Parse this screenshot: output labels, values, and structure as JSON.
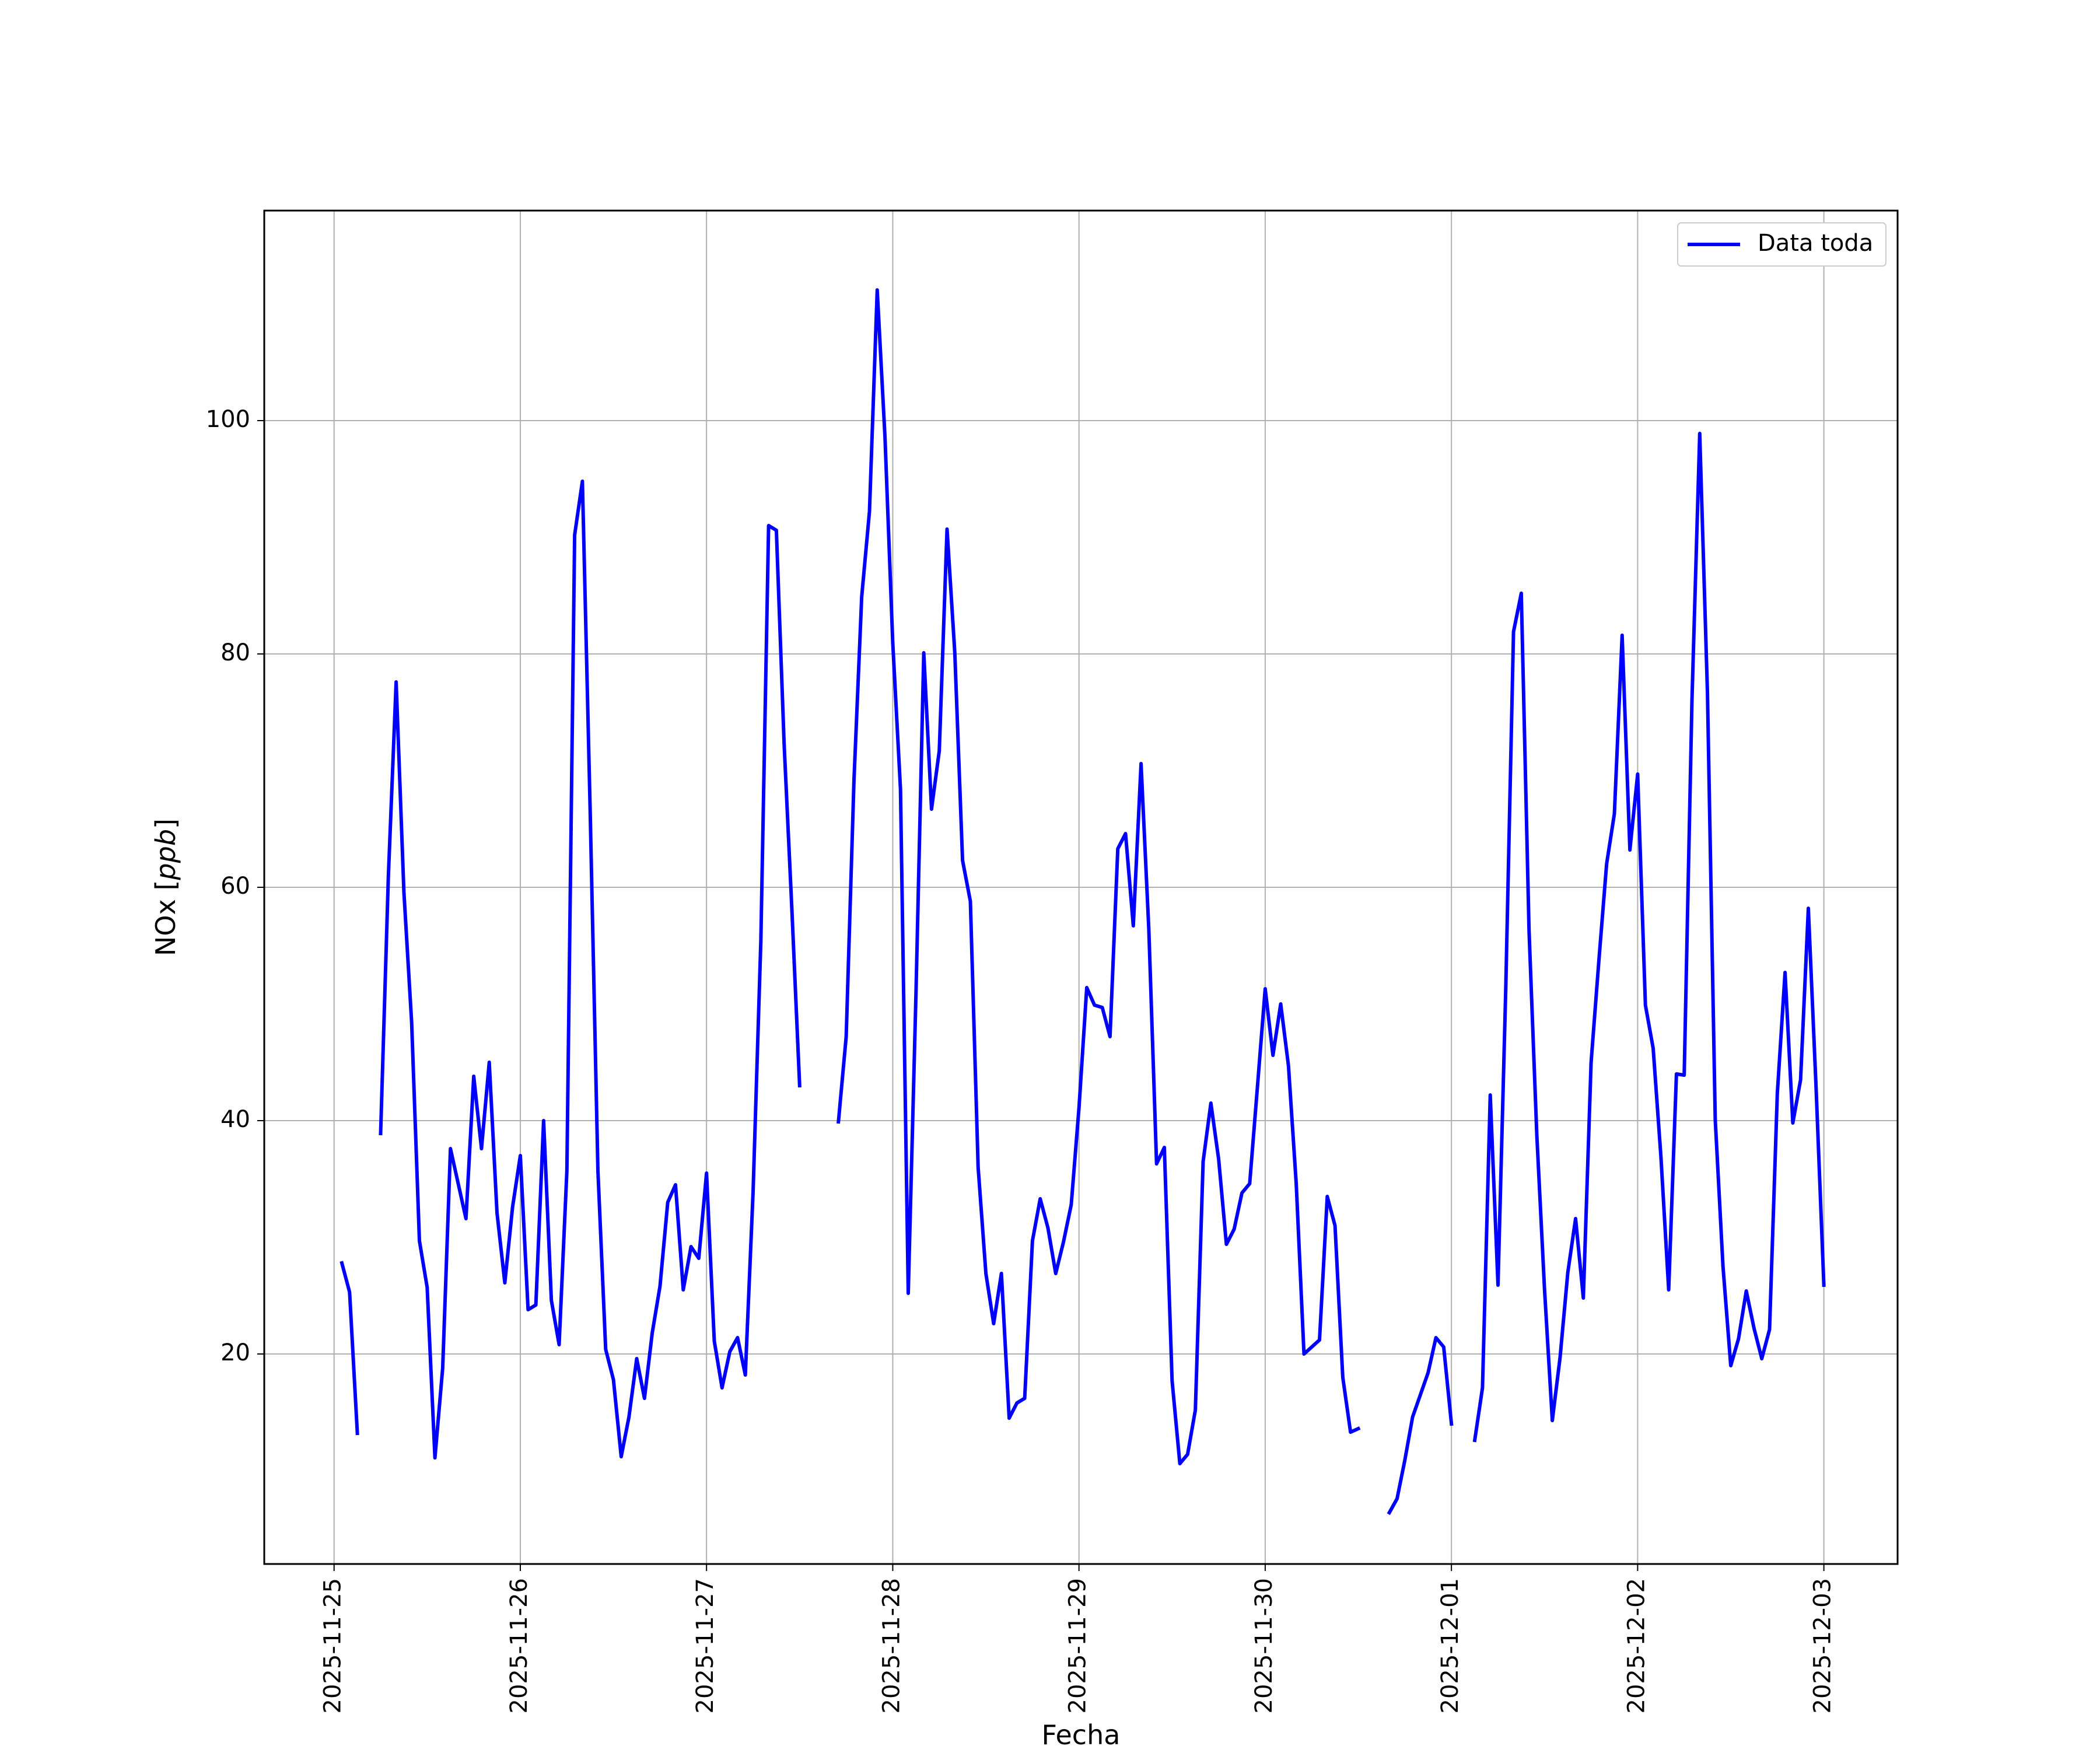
{
  "chart_data": {
    "type": "line",
    "title": "",
    "xlabel": "Fecha",
    "ylabel": "NOx [ppb]",
    "ylabel_main": "NOx ",
    "ylabel_unit": "ppb",
    "xlim": [
      "2025-11-24T15:00",
      "2025-12-03T09:30"
    ],
    "ylim": [
      2,
      118
    ],
    "grid": true,
    "legend_position": "top-right",
    "x_ticks": [
      "2025-11-25",
      "2025-11-26",
      "2025-11-27",
      "2025-11-28",
      "2025-11-29",
      "2025-11-30",
      "2025-12-01",
      "2025-12-02",
      "2025-12-03"
    ],
    "y_ticks": [
      20,
      40,
      60,
      80,
      100
    ],
    "series": [
      {
        "name": "Data toda",
        "color": "#0000ff",
        "points": [
          [
            "2025-11-25T01:00",
            27.8
          ],
          [
            "2025-11-25T02:00",
            25.3
          ],
          [
            "2025-11-25T03:00",
            13.2
          ],
          [
            "2025-11-25T04:00",
            null
          ],
          [
            "2025-11-25T06:00",
            38.9
          ],
          [
            "2025-11-25T07:00",
            61.0
          ],
          [
            "2025-11-25T08:00",
            77.6
          ],
          [
            "2025-11-25T09:00",
            59.6
          ],
          [
            "2025-11-25T10:00",
            48.4
          ],
          [
            "2025-11-25T11:00",
            29.7
          ],
          [
            "2025-11-25T12:00",
            25.7
          ],
          [
            "2025-11-25T13:00",
            11.1
          ],
          [
            "2025-11-25T14:00",
            18.8
          ],
          [
            "2025-11-25T15:00",
            37.6
          ],
          [
            "2025-11-25T16:00",
            34.6
          ],
          [
            "2025-11-25T17:00",
            31.6
          ],
          [
            "2025-11-25T18:00",
            43.8
          ],
          [
            "2025-11-25T19:00",
            37.6
          ],
          [
            "2025-11-25T20:00",
            45.0
          ],
          [
            "2025-11-25T21:00",
            32.1
          ],
          [
            "2025-11-25T22:00",
            26.1
          ],
          [
            "2025-11-25T23:00",
            32.6
          ],
          [
            "2025-11-26T00:00",
            37.0
          ],
          [
            "2025-11-26T01:00",
            23.8
          ],
          [
            "2025-11-26T02:00",
            24.2
          ],
          [
            "2025-11-26T03:00",
            40.0
          ],
          [
            "2025-11-26T04:00",
            24.6
          ],
          [
            "2025-11-26T05:00",
            20.8
          ],
          [
            "2025-11-26T06:00",
            35.7
          ],
          [
            "2025-11-26T07:00",
            90.2
          ],
          [
            "2025-11-26T08:00",
            94.8
          ],
          [
            "2025-11-26T09:00",
            66.6
          ],
          [
            "2025-11-26T10:00",
            35.7
          ],
          [
            "2025-11-26T11:00",
            20.4
          ],
          [
            "2025-11-26T12:00",
            17.8
          ],
          [
            "2025-11-26T13:00",
            11.2
          ],
          [
            "2025-11-26T14:00",
            14.6
          ],
          [
            "2025-11-26T15:00",
            19.6
          ],
          [
            "2025-11-26T16:00",
            16.2
          ],
          [
            "2025-11-26T17:00",
            21.8
          ],
          [
            "2025-11-26T18:00",
            25.8
          ],
          [
            "2025-11-26T19:00",
            33.0
          ],
          [
            "2025-11-26T20:00",
            34.5
          ],
          [
            "2025-11-26T21:00",
            25.5
          ],
          [
            "2025-11-26T22:00",
            29.2
          ],
          [
            "2025-11-26T23:00",
            28.2
          ],
          [
            "2025-11-27T00:00",
            35.5
          ],
          [
            "2025-11-27T01:00",
            21.1
          ],
          [
            "2025-11-27T02:00",
            17.1
          ],
          [
            "2025-11-27T03:00",
            20.2
          ],
          [
            "2025-11-27T04:00",
            21.4
          ],
          [
            "2025-11-27T05:00",
            18.2
          ],
          [
            "2025-11-27T06:00",
            33.9
          ],
          [
            "2025-11-27T07:00",
            55.4
          ],
          [
            "2025-11-27T08:00",
            91.0
          ],
          [
            "2025-11-27T09:00",
            90.6
          ],
          [
            "2025-11-27T10:00",
            72.3
          ],
          [
            "2025-11-27T11:00",
            58.1
          ],
          [
            "2025-11-27T12:00",
            43.0
          ],
          [
            "2025-11-27T13:00",
            null
          ],
          [
            "2025-11-27T17:00",
            39.9
          ],
          [
            "2025-11-27T18:00",
            47.2
          ],
          [
            "2025-11-27T19:00",
            69.1
          ],
          [
            "2025-11-27T20:00",
            84.9
          ],
          [
            "2025-11-27T21:00",
            92.2
          ],
          [
            "2025-11-27T22:00",
            111.2
          ],
          [
            "2025-11-27T23:00",
            98.6
          ],
          [
            "2025-11-28T00:00",
            81.0
          ],
          [
            "2025-11-28T01:00",
            68.4
          ],
          [
            "2025-11-28T02:00",
            25.2
          ],
          [
            "2025-11-28T03:00",
            51.0
          ],
          [
            "2025-11-28T04:00",
            80.1
          ],
          [
            "2025-11-28T05:00",
            66.7
          ],
          [
            "2025-11-28T06:00",
            71.7
          ],
          [
            "2025-11-28T07:00",
            90.7
          ],
          [
            "2025-11-28T08:00",
            80.1
          ],
          [
            "2025-11-28T09:00",
            62.3
          ],
          [
            "2025-11-28T10:00",
            58.8
          ],
          [
            "2025-11-28T11:00",
            36.0
          ],
          [
            "2025-11-28T12:00",
            26.9
          ],
          [
            "2025-11-28T13:00",
            22.6
          ],
          [
            "2025-11-28T14:00",
            26.9
          ],
          [
            "2025-11-28T15:00",
            14.5
          ],
          [
            "2025-11-28T16:00",
            15.8
          ],
          [
            "2025-11-28T17:00",
            16.2
          ],
          [
            "2025-11-28T18:00",
            29.7
          ],
          [
            "2025-11-28T19:00",
            33.3
          ],
          [
            "2025-11-28T20:00",
            30.8
          ],
          [
            "2025-11-28T21:00",
            26.9
          ],
          [
            "2025-11-28T22:00",
            29.6
          ],
          [
            "2025-11-28T23:00",
            32.8
          ],
          [
            "2025-11-29T00:00",
            41.1
          ],
          [
            "2025-11-29T01:00",
            51.4
          ],
          [
            "2025-11-29T02:00",
            49.9
          ],
          [
            "2025-11-29T03:00",
            49.7
          ],
          [
            "2025-11-29T04:00",
            47.2
          ],
          [
            "2025-11-29T05:00",
            63.3
          ],
          [
            "2025-11-29T06:00",
            64.6
          ],
          [
            "2025-11-29T07:00",
            56.7
          ],
          [
            "2025-11-29T08:00",
            70.6
          ],
          [
            "2025-11-29T09:00",
            56.4
          ],
          [
            "2025-11-29T10:00",
            36.3
          ],
          [
            "2025-11-29T11:00",
            37.7
          ],
          [
            "2025-11-29T12:00",
            17.7
          ],
          [
            "2025-11-29T13:00",
            10.6
          ],
          [
            "2025-11-29T14:00",
            11.4
          ],
          [
            "2025-11-29T15:00",
            15.2
          ],
          [
            "2025-11-29T16:00",
            36.5
          ],
          [
            "2025-11-29T17:00",
            41.5
          ],
          [
            "2025-11-29T18:00",
            36.7
          ],
          [
            "2025-11-29T19:00",
            29.4
          ],
          [
            "2025-11-29T20:00",
            30.7
          ],
          [
            "2025-11-29T21:00",
            33.8
          ],
          [
            "2025-11-29T22:00",
            34.6
          ],
          [
            "2025-11-29T23:00",
            42.9
          ],
          [
            "2025-11-30T00:00",
            51.3
          ],
          [
            "2025-11-30T01:00",
            45.6
          ],
          [
            "2025-11-30T02:00",
            50.0
          ],
          [
            "2025-11-30T03:00",
            44.7
          ],
          [
            "2025-11-30T04:00",
            34.6
          ],
          [
            "2025-11-30T05:00",
            20.0
          ],
          [
            "2025-11-30T06:00",
            20.6
          ],
          [
            "2025-11-30T07:00",
            21.2
          ],
          [
            "2025-11-30T08:00",
            33.5
          ],
          [
            "2025-11-30T09:00",
            31.0
          ],
          [
            "2025-11-30T10:00",
            18.0
          ],
          [
            "2025-11-30T11:00",
            13.3
          ],
          [
            "2025-11-30T12:00",
            13.6
          ],
          [
            "2025-11-30T13:00",
            null
          ],
          [
            "2025-11-30T16:00",
            6.4
          ],
          [
            "2025-11-30T17:00",
            7.6
          ],
          [
            "2025-11-30T18:00",
            10.9
          ],
          [
            "2025-11-30T19:00",
            14.6
          ],
          [
            "2025-11-30T20:00",
            16.5
          ],
          [
            "2025-11-30T21:00",
            18.4
          ],
          [
            "2025-11-30T22:00",
            21.4
          ],
          [
            "2025-11-30T23:00",
            20.6
          ],
          [
            "2025-12-01T00:00",
            14.0
          ],
          [
            "2025-12-01T01:00",
            null
          ],
          [
            "2025-12-01T03:00",
            12.6
          ],
          [
            "2025-12-01T04:00",
            17.1
          ],
          [
            "2025-12-01T05:00",
            42.2
          ],
          [
            "2025-12-01T06:00",
            25.9
          ],
          [
            "2025-12-01T07:00",
            51.3
          ],
          [
            "2025-12-01T08:00",
            81.9
          ],
          [
            "2025-12-01T09:00",
            85.2
          ],
          [
            "2025-12-01T10:00",
            56.3
          ],
          [
            "2025-12-01T11:00",
            38.8
          ],
          [
            "2025-12-01T12:00",
            25.5
          ],
          [
            "2025-12-01T13:00",
            14.3
          ],
          [
            "2025-12-01T14:00",
            19.7
          ],
          [
            "2025-12-01T15:00",
            27.0
          ],
          [
            "2025-12-01T16:00",
            31.6
          ],
          [
            "2025-12-01T17:00",
            24.8
          ],
          [
            "2025-12-01T18:00",
            45.0
          ],
          [
            "2025-12-01T19:00",
            53.7
          ],
          [
            "2025-12-01T20:00",
            62.0
          ],
          [
            "2025-12-01T21:00",
            66.3
          ],
          [
            "2025-12-01T22:00",
            81.6
          ],
          [
            "2025-12-01T23:00",
            63.2
          ],
          [
            "2025-12-02T00:00",
            69.7
          ],
          [
            "2025-12-02T01:00",
            49.9
          ],
          [
            "2025-12-02T02:00",
            46.2
          ],
          [
            "2025-12-02T03:00",
            36.9
          ],
          [
            "2025-12-02T04:00",
            25.5
          ],
          [
            "2025-12-02T05:00",
            44.0
          ],
          [
            "2025-12-02T06:00",
            43.9
          ],
          [
            "2025-12-02T07:00",
            76.0
          ],
          [
            "2025-12-02T08:00",
            98.9
          ],
          [
            "2025-12-02T09:00",
            76.6
          ],
          [
            "2025-12-02T10:00",
            40.1
          ],
          [
            "2025-12-02T11:00",
            27.5
          ],
          [
            "2025-12-02T12:00",
            19.0
          ],
          [
            "2025-12-02T13:00",
            21.3
          ],
          [
            "2025-12-02T14:00",
            25.4
          ],
          [
            "2025-12-02T15:00",
            22.2
          ],
          [
            "2025-12-02T16:00",
            19.6
          ],
          [
            "2025-12-02T17:00",
            22.1
          ],
          [
            "2025-12-02T18:00",
            42.3
          ],
          [
            "2025-12-02T19:00",
            52.7
          ],
          [
            "2025-12-02T20:00",
            39.8
          ],
          [
            "2025-12-02T21:00",
            43.5
          ],
          [
            "2025-12-02T22:00",
            58.2
          ],
          [
            "2025-12-02T23:00",
            42.8
          ],
          [
            "2025-12-03T00:00",
            25.9
          ]
        ]
      }
    ]
  }
}
